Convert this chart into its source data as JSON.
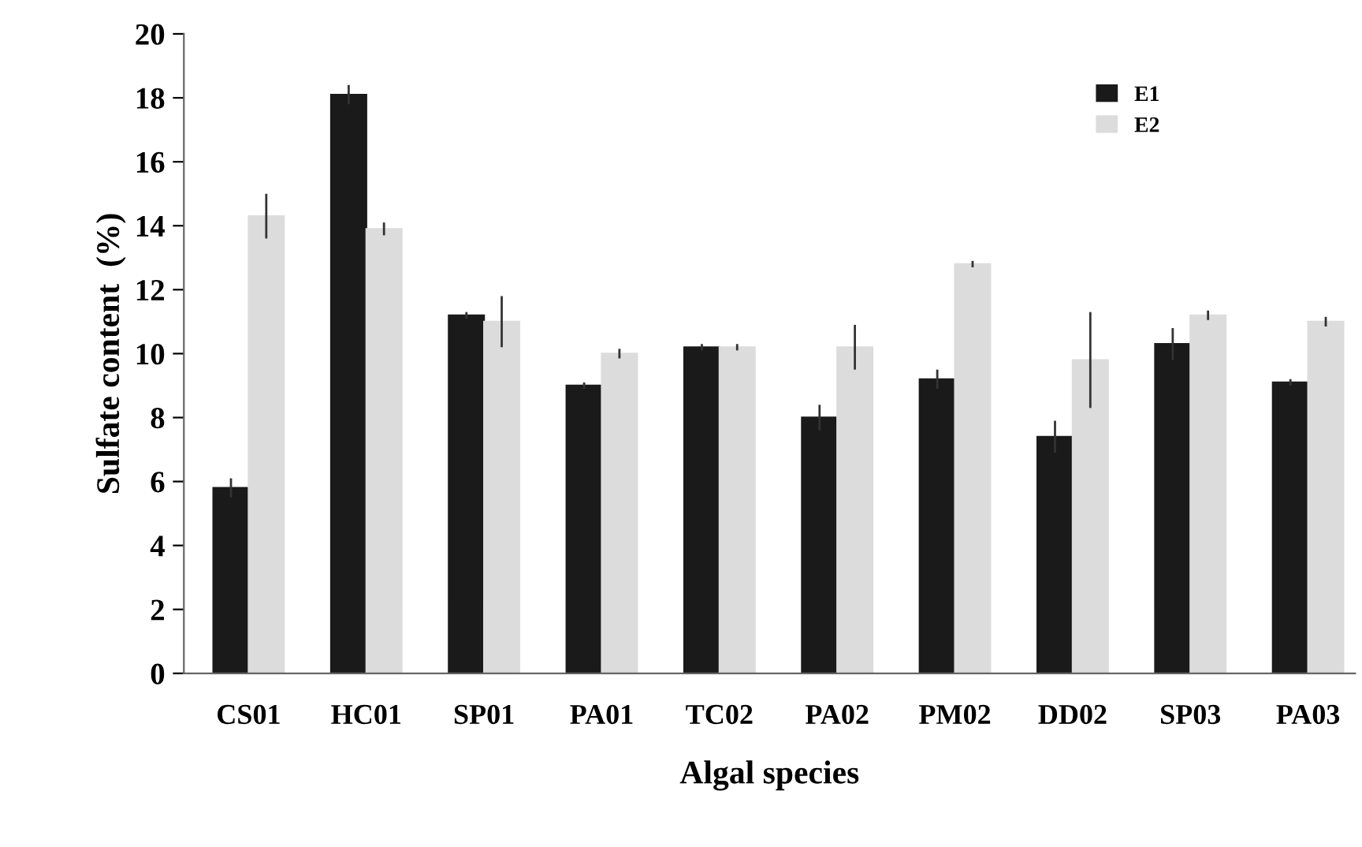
{
  "chart_data": {
    "type": "bar",
    "xlabel": "Algal species",
    "ylabel": "Sulfate content  (%)",
    "categories": [
      "CS01",
      "HC01",
      "SP01",
      "PA01",
      "TC02",
      "PA02",
      "PM02",
      "DD02",
      "SP03",
      "PA03"
    ],
    "series": [
      {
        "name": "E1",
        "color": "#1a1a1a",
        "values": [
          5.8,
          18.1,
          11.2,
          9.0,
          10.2,
          8.0,
          9.2,
          7.4,
          10.3,
          9.1
        ],
        "errors": [
          0.3,
          0.3,
          0.1,
          0.1,
          0.1,
          0.4,
          0.3,
          0.5,
          0.5,
          0.1
        ]
      },
      {
        "name": "E2",
        "color": "#dcdcdc",
        "values": [
          14.3,
          13.9,
          11.0,
          10.0,
          10.2,
          10.2,
          12.8,
          9.8,
          11.2,
          11.0
        ],
        "errors": [
          0.7,
          0.2,
          0.8,
          0.15,
          0.1,
          0.7,
          0.1,
          1.5,
          0.15,
          0.15
        ]
      }
    ],
    "ylim": [
      0,
      20
    ],
    "yticks": [
      0,
      2,
      4,
      6,
      8,
      10,
      12,
      14,
      16,
      18,
      20
    ],
    "grid": false,
    "legend": "top right"
  }
}
